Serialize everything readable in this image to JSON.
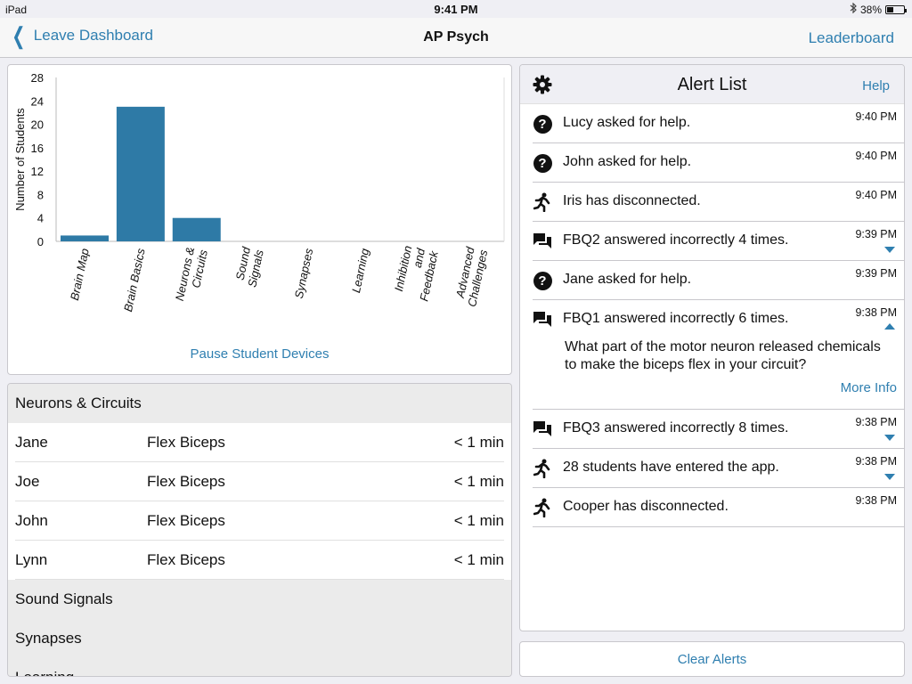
{
  "status_bar": {
    "device": "iPad",
    "time": "9:41 PM",
    "battery": "38%",
    "battery_level": 0.38
  },
  "nav": {
    "back_label": "Leave Dashboard",
    "title": "AP Psych",
    "right_label": "Leaderboard"
  },
  "chart_data": {
    "type": "bar",
    "categories": [
      "Brain Map",
      "Brain Basics",
      "Neurons & Circuits",
      "Sound Signals",
      "Synapses",
      "Learning",
      "Inhibition and Feedback",
      "Advanced Challenges"
    ],
    "category_lines": [
      [
        "Brain Map"
      ],
      [
        "Brain Basics"
      ],
      [
        "Neurons &",
        "Circuits"
      ],
      [
        "Sound",
        "Signals"
      ],
      [
        "Synapses"
      ],
      [
        "Learning"
      ],
      [
        "Inhibition",
        "and",
        "Feedback"
      ],
      [
        "Advanced",
        "Challenges"
      ]
    ],
    "values": [
      1,
      23,
      4,
      0,
      0,
      0,
      0,
      0
    ],
    "ylabel": "Number of Students",
    "xlabel": "",
    "ylim": [
      0,
      28
    ],
    "yticks": [
      0,
      4,
      8,
      12,
      16,
      20,
      24,
      28
    ],
    "bar_color": "#2e7aa6",
    "grid": false
  },
  "chart_panel": {
    "pause_label": "Pause Student Devices"
  },
  "activity_list": {
    "sections": [
      {
        "title": "Neurons & Circuits",
        "rows": [
          {
            "name": "Jane",
            "activity": "Flex Biceps",
            "time": "< 1 min"
          },
          {
            "name": "Joe",
            "activity": "Flex Biceps",
            "time": "< 1 min"
          },
          {
            "name": "John",
            "activity": "Flex Biceps",
            "time": "< 1 min"
          },
          {
            "name": "Lynn",
            "activity": "Flex Biceps",
            "time": "< 1 min"
          }
        ]
      },
      {
        "title": "Sound Signals",
        "rows": []
      },
      {
        "title": "Synapses",
        "rows": []
      },
      {
        "title": "Learning",
        "rows": []
      }
    ]
  },
  "alerts": {
    "title": "Alert List",
    "help_label": "Help",
    "settings_icon": "gear-icon",
    "items": [
      {
        "icon": "question-icon",
        "text": "Lucy asked for help.",
        "time": "9:40 PM",
        "caret": ""
      },
      {
        "icon": "question-icon",
        "text": "John asked for help.",
        "time": "9:40 PM",
        "caret": ""
      },
      {
        "icon": "running-person-icon",
        "text": "Iris has disconnected.",
        "time": "9:40 PM",
        "caret": ""
      },
      {
        "icon": "chat-bubble-icon",
        "text": "FBQ2 answered incorrectly 4 times.",
        "time": "9:39 PM",
        "caret": "down"
      },
      {
        "icon": "question-icon",
        "text": "Jane asked for help.",
        "time": "9:39 PM",
        "caret": ""
      },
      {
        "icon": "chat-bubble-icon",
        "text": "FBQ1 answered incorrectly 6 times.",
        "time": "9:38 PM",
        "caret": "up",
        "detail": "What part of the motor neuron released chemicals to make the biceps flex in your circuit?",
        "more_label": "More Info"
      },
      {
        "icon": "chat-bubble-icon",
        "text": "FBQ3 answered incorrectly 8 times.",
        "time": "9:38 PM",
        "caret": "down"
      },
      {
        "icon": "running-person-icon",
        "text": "28 students have entered the app.",
        "time": "9:38 PM",
        "caret": "down"
      },
      {
        "icon": "running-person-icon",
        "text": "Cooper has disconnected.",
        "time": "9:38 PM",
        "caret": ""
      }
    ],
    "clear_label": "Clear Alerts"
  },
  "colors": {
    "accent": "#2f7fb0",
    "bar": "#2e7aa6",
    "background": "#efeff4"
  }
}
